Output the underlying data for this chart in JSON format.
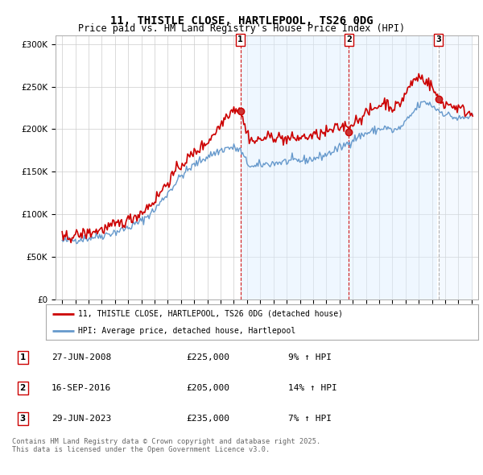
{
  "title": "11, THISTLE CLOSE, HARTLEPOOL, TS26 0DG",
  "subtitle": "Price paid vs. HM Land Registry's House Price Index (HPI)",
  "legend_line1": "11, THISTLE CLOSE, HARTLEPOOL, TS26 0DG (detached house)",
  "legend_line2": "HPI: Average price, detached house, Hartlepool",
  "transactions": [
    {
      "num": 1,
      "date": "27-JUN-2008",
      "price": "£225,000",
      "change": "9% ↑ HPI",
      "x_year": 2008.49
    },
    {
      "num": 2,
      "date": "16-SEP-2016",
      "price": "£205,000",
      "change": "14% ↑ HPI",
      "x_year": 2016.71
    },
    {
      "num": 3,
      "date": "29-JUN-2023",
      "price": "£235,000",
      "change": "7% ↑ HPI",
      "x_year": 2023.49
    }
  ],
  "footer": "Contains HM Land Registry data © Crown copyright and database right 2025.\nThis data is licensed under the Open Government Licence v3.0.",
  "line_color_red": "#cc0000",
  "line_color_blue": "#6699cc",
  "fill_color_blue": "#ddeeff",
  "background_color": "#ffffff",
  "grid_color": "#cccccc",
  "ylim": [
    0,
    310000
  ],
  "xlim_start": 1994.5,
  "xlim_end": 2026.5,
  "vline_colors": [
    "#cc0000",
    "#cc0000",
    "#aaaaaa"
  ],
  "vline_styles": [
    "--",
    "--",
    "--"
  ]
}
